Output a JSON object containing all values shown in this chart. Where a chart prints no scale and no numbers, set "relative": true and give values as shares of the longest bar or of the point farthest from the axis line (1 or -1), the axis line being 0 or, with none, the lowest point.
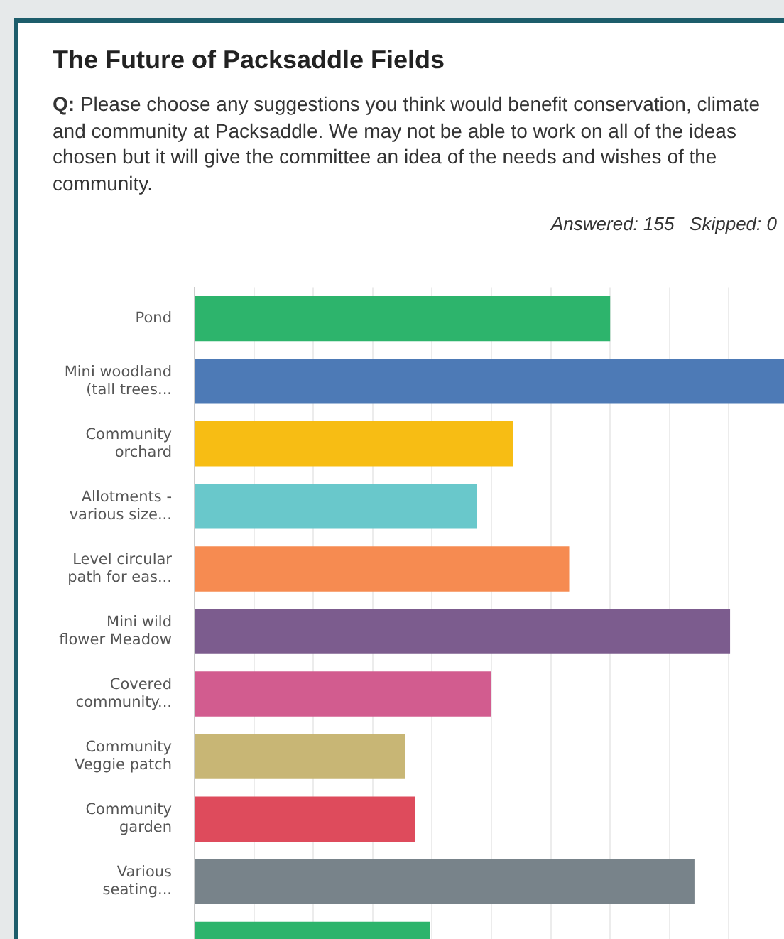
{
  "chart_data": {
    "type": "bar",
    "orientation": "horizontal",
    "relative": true,
    "grid": true,
    "legend": false,
    "title": "The Future of Packsaddle Fields",
    "subtitle": "Q: Please choose any suggestions you think would benefit conservation, climate and community at Packsaddle. We may not be able to work on all of the ideas chosen but it will give the committee an idea of the needs and wishes of the community.",
    "annotations": [
      "Answered: 155   Skipped: 0"
    ],
    "categories": [
      "Pond",
      "Mini woodland (tall trees...",
      "Community orchard",
      "Allotments - various size...",
      "Level circular path for eas...",
      "Mini wild flower Meadow",
      "Covered community...",
      "Community Veggie patch",
      "Community garden",
      "Various seating...",
      null
    ],
    "values": [
      0.7,
      1,
      0.537,
      0.475,
      0.631,
      0.902,
      0.499,
      0.355,
      0.372,
      0.842,
      0.396
    ],
    "colors": [
      "#2db46c",
      "#4d7ab6",
      "#f7bd14",
      "#69c8cb",
      "#f68b51",
      "#7c5c8e",
      "#d25c8f",
      "#c8b675",
      "#de4b5c",
      "#78838a",
      "#2db46c"
    ]
  }
}
